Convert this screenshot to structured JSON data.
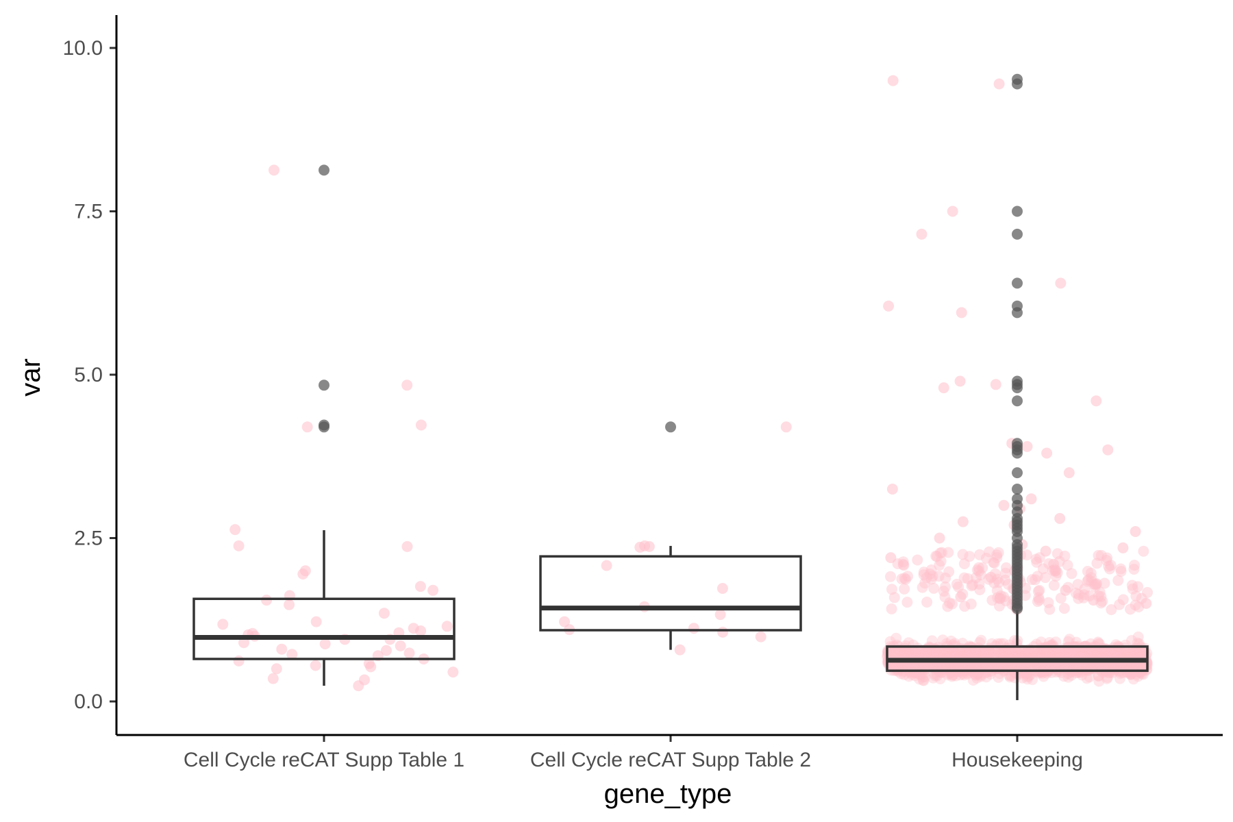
{
  "chart_data": {
    "type": "boxplot",
    "xlabel": "gene_type",
    "ylabel": "var",
    "ylim": [
      -0.5,
      10.5
    ],
    "yticks": [
      {
        "value": 0.0,
        "label": "0.0"
      },
      {
        "value": 2.5,
        "label": "2.5"
      },
      {
        "value": 5.0,
        "label": "5.0"
      },
      {
        "value": 7.5,
        "label": "7.5"
      },
      {
        "value": 10.0,
        "label": "10.0"
      }
    ],
    "categories": [
      "Cell Cycle reCAT Supp Table 1",
      "Cell Cycle reCAT Supp Table 2",
      "Housekeeping"
    ],
    "jitter_color": "#ffc0cb",
    "outlier_color": "#555555",
    "box_color": "#333333",
    "boxes": [
      {
        "category": "Cell Cycle reCAT Supp Table 1",
        "lower_whisker": 0.24,
        "q1": 0.65,
        "median": 0.98,
        "q3": 1.57,
        "upper_whisker": 2.62,
        "outliers": [
          4.2,
          4.23,
          4.84,
          8.13
        ],
        "jitter_points": [
          0.33,
          0.35,
          0.24,
          0.45,
          0.53,
          0.58,
          0.62,
          0.65,
          0.7,
          0.74,
          0.78,
          0.8,
          0.85,
          0.9,
          0.95,
          1.0,
          1.02,
          1.05,
          1.08,
          1.12,
          1.18,
          1.22,
          1.35,
          1.48,
          1.55,
          1.62,
          1.7,
          1.76,
          1.95,
          2.0,
          2.37,
          2.38,
          2.63,
          0.5,
          0.72,
          0.88,
          1.15,
          0.55,
          0.95,
          1.04,
          4.2,
          4.23,
          4.84,
          8.13
        ]
      },
      {
        "category": "Cell Cycle reCAT Supp Table 2",
        "lower_whisker": 0.79,
        "q1": 1.09,
        "median": 1.43,
        "q3": 2.22,
        "upper_whisker": 2.38,
        "outliers": [
          4.2
        ],
        "jitter_points": [
          0.79,
          0.99,
          1.06,
          1.1,
          1.12,
          1.22,
          1.33,
          1.45,
          1.73,
          2.08,
          2.36,
          2.38,
          2.37,
          4.2
        ]
      },
      {
        "category": "Housekeeping",
        "lower_whisker": 0.02,
        "q1": 0.47,
        "median": 0.63,
        "q3": 0.84,
        "upper_whisker": 1.4,
        "outliers": [
          1.42,
          1.45,
          1.5,
          1.55,
          1.6,
          1.65,
          1.7,
          1.75,
          1.8,
          1.85,
          1.9,
          1.95,
          2.0,
          2.05,
          2.1,
          2.15,
          2.2,
          2.25,
          2.3,
          2.35,
          2.4,
          2.5,
          2.6,
          2.65,
          2.7,
          2.75,
          2.8,
          2.9,
          3.0,
          3.1,
          3.25,
          3.5,
          3.8,
          3.85,
          3.9,
          3.95,
          4.6,
          4.8,
          4.85,
          4.9,
          5.95,
          6.05,
          6.4,
          7.15,
          7.5,
          9.45,
          9.52
        ],
        "jitter_points": [
          9.45,
          9.5,
          7.5,
          7.15,
          6.4,
          6.05,
          5.95,
          4.9,
          4.85,
          4.8,
          4.6,
          3.95,
          3.9,
          3.85,
          3.8,
          3.5,
          3.25,
          3.1,
          3.0,
          2.95,
          2.8,
          2.75,
          2.7,
          2.6,
          2.5,
          2.4,
          2.35,
          2.3,
          2.2,
          2.1,
          2.0,
          1.9,
          1.8,
          1.7,
          1.6,
          1.55,
          1.5,
          1.45
        ]
      }
    ]
  }
}
